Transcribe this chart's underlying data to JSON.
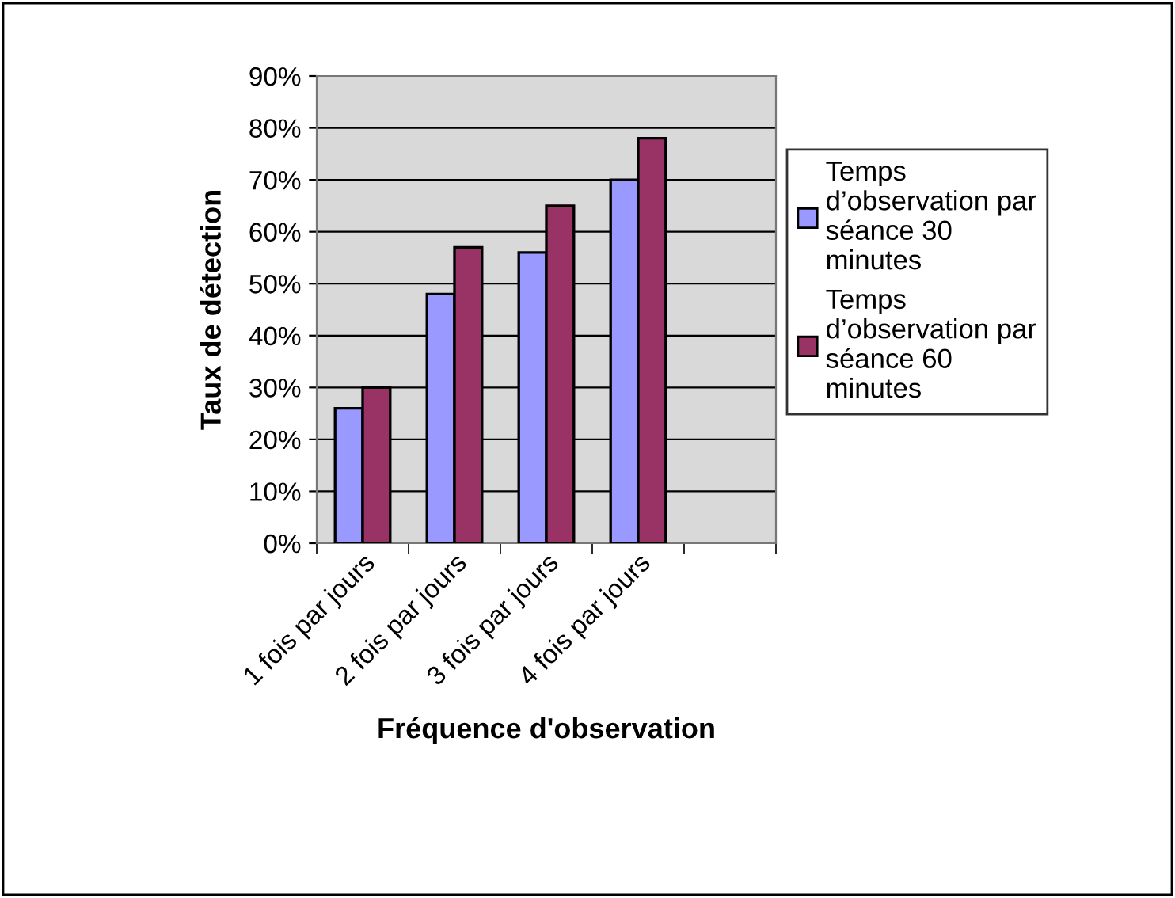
{
  "chart_data": {
    "type": "bar",
    "xlabel": "Fréquence d'observation",
    "ylabel": "Taux de détection",
    "categories": [
      "1 fois par jours",
      "2 fois par jours",
      "3 fois par jours",
      "4 fois par jours",
      null
    ],
    "series": [
      {
        "name": "Temps\nd’observation par\nséance 30\nminutes",
        "color": "#9999ff",
        "values": [
          26,
          48,
          56,
          70,
          null
        ]
      },
      {
        "name": "Temps\nd’observation par\nséance 60\nminutes",
        "color": "#993366",
        "values": [
          30,
          57,
          65,
          78,
          null
        ]
      }
    ],
    "ylim": [
      0,
      90
    ],
    "yticks": [
      {
        "value": 0,
        "label": "0%"
      },
      {
        "value": 10,
        "label": "10%"
      },
      {
        "value": 20,
        "label": "20%"
      },
      {
        "value": 30,
        "label": "30%"
      },
      {
        "value": 40,
        "label": "40%"
      },
      {
        "value": 50,
        "label": "50%"
      },
      {
        "value": 60,
        "label": "60%"
      },
      {
        "value": 70,
        "label": "70%"
      },
      {
        "value": 80,
        "label": "80%"
      },
      {
        "value": 90,
        "label": "90%"
      }
    ],
    "grid": "y",
    "legend": "right"
  }
}
